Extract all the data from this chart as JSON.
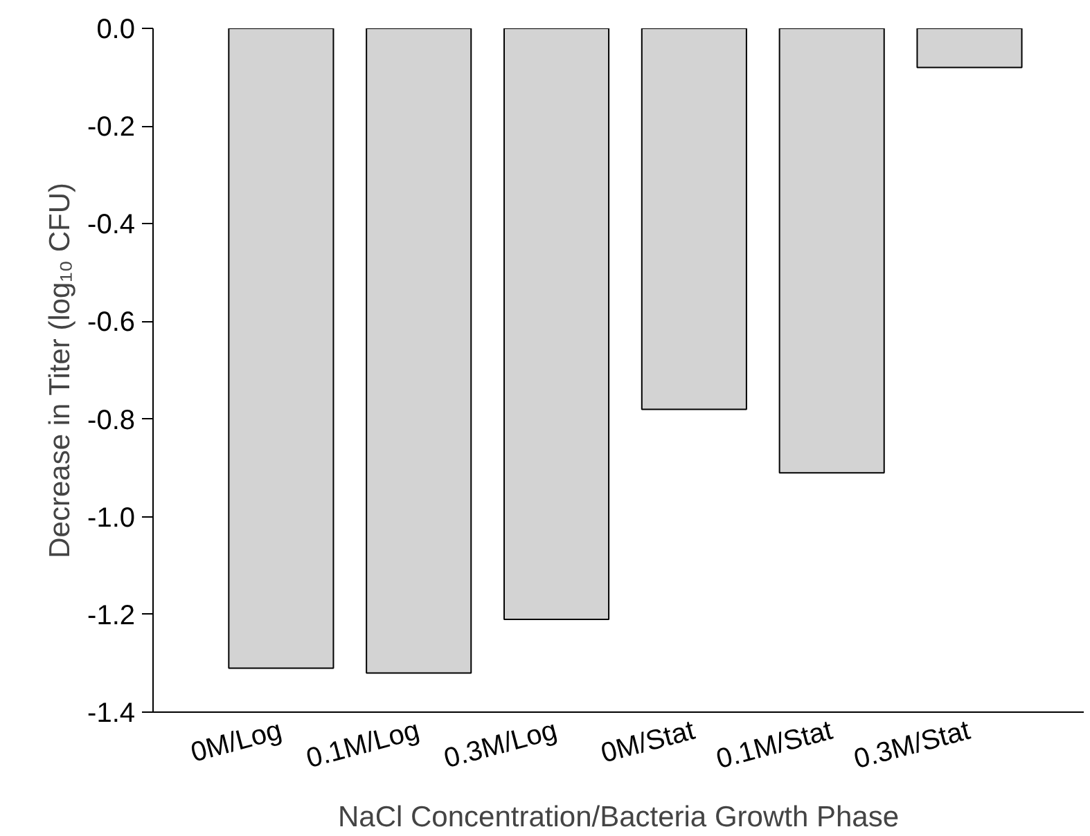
{
  "chart_data": {
    "type": "bar",
    "xlabel": "NaCl Concentration/Bacteria Growth Phase",
    "ylabel": "Decrease in Titer (log₁₀ CFU)",
    "categories": [
      "0M/Log",
      "0.1M/Log",
      "0.3M/Log",
      "0M/Stat",
      "0.1M/Stat",
      "0.3M/Stat"
    ],
    "values": [
      -1.31,
      -1.32,
      -1.21,
      -0.78,
      -0.91,
      -0.08
    ],
    "color": "#d3d3d3",
    "ylim": [
      -1.4,
      0.0
    ],
    "yticks": [
      {
        "value": -1.4,
        "label": "-1.4"
      },
      {
        "value": -1.2,
        "label": "-1.2"
      },
      {
        "value": -1.0,
        "label": "-1.0"
      },
      {
        "value": -0.8,
        "label": "-0.8"
      },
      {
        "value": -0.6,
        "label": "-0.6"
      },
      {
        "value": -0.4,
        "label": "-0.4"
      },
      {
        "value": -0.2,
        "label": "-0.2"
      },
      {
        "value": 0.0,
        "label": "0.0"
      }
    ],
    "grid": false
  }
}
